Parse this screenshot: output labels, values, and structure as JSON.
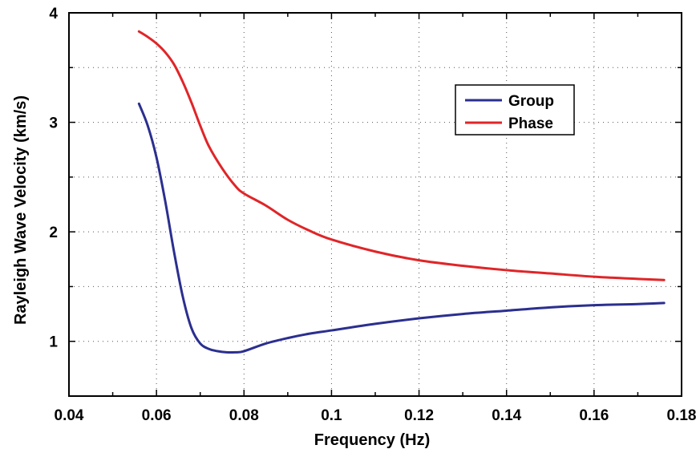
{
  "chart_data": {
    "type": "line",
    "title": "",
    "xlabel": "Frequency (Hz)",
    "ylabel": "Rayleigh Wave Velocity (km/s)",
    "xlim": [
      0.04,
      0.18
    ],
    "ylim": [
      0.5,
      4.0
    ],
    "x_ticks": [
      0.04,
      0.06,
      0.08,
      0.1,
      0.12,
      0.14,
      0.16,
      0.18
    ],
    "x_tick_labels": [
      "0.04",
      "0.06",
      "0.08",
      "0.1",
      "0.12",
      "0.14",
      "0.16",
      "0.18"
    ],
    "y_ticks": [
      1,
      2,
      3,
      4
    ],
    "y_tick_labels": [
      "1",
      "2",
      "3",
      "4"
    ],
    "grid": true,
    "legend_position": "top-right",
    "series": [
      {
        "name": "Group",
        "color": "#2b2f8f",
        "x": [
          0.056,
          0.058,
          0.06,
          0.062,
          0.064,
          0.066,
          0.068,
          0.07,
          0.072,
          0.074,
          0.076,
          0.078,
          0.08,
          0.085,
          0.09,
          0.095,
          0.1,
          0.11,
          0.12,
          0.13,
          0.14,
          0.15,
          0.16,
          0.17,
          0.176
        ],
        "y": [
          3.17,
          2.97,
          2.68,
          2.28,
          1.82,
          1.41,
          1.12,
          0.98,
          0.93,
          0.91,
          0.9,
          0.9,
          0.91,
          0.98,
          1.03,
          1.07,
          1.1,
          1.16,
          1.21,
          1.25,
          1.28,
          1.31,
          1.33,
          1.34,
          1.35
        ]
      },
      {
        "name": "Phase",
        "color": "#e02528",
        "x": [
          0.056,
          0.058,
          0.06,
          0.062,
          0.064,
          0.066,
          0.068,
          0.07,
          0.072,
          0.075,
          0.078,
          0.08,
          0.085,
          0.09,
          0.095,
          0.1,
          0.11,
          0.12,
          0.13,
          0.14,
          0.15,
          0.16,
          0.17,
          0.176
        ],
        "y": [
          3.83,
          3.78,
          3.72,
          3.64,
          3.53,
          3.37,
          3.18,
          2.97,
          2.78,
          2.58,
          2.42,
          2.35,
          2.24,
          2.11,
          2.01,
          1.93,
          1.82,
          1.74,
          1.69,
          1.65,
          1.62,
          1.59,
          1.57,
          1.56
        ]
      }
    ]
  }
}
